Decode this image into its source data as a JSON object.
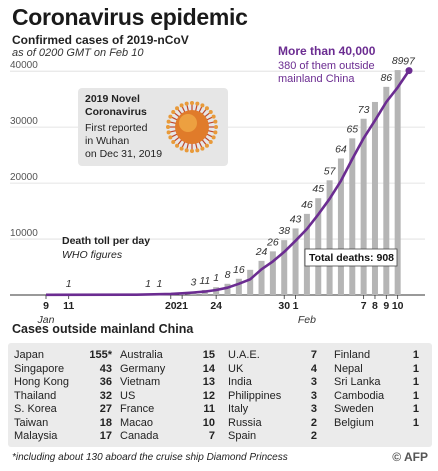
{
  "header": {
    "title": "Coronavirus epidemic",
    "subtitle": "Confirmed cases of 2019-nCoV",
    "subtitle2": "as of 0200 GMT on Feb 10"
  },
  "chart_data": {
    "type": "bar",
    "ylim": [
      0,
      42000
    ],
    "y_ticks": [
      10000,
      20000,
      30000,
      40000
    ],
    "y_tick_labels": [
      "10000",
      "20000",
      "30000",
      "40000"
    ],
    "x_ticks": [
      {
        "day": 0,
        "label": "9"
      },
      {
        "day": 2,
        "label": "11"
      },
      {
        "day": 11,
        "label": "20"
      },
      {
        "day": 12,
        "label": "21"
      },
      {
        "day": 15,
        "label": "24"
      },
      {
        "day": 21,
        "label": "30"
      },
      {
        "day": 22,
        "label": "1"
      },
      {
        "day": 28,
        "label": "7"
      },
      {
        "day": 29,
        "label": "8"
      },
      {
        "day": 30,
        "label": "9"
      },
      {
        "day": 31,
        "label": "10"
      }
    ],
    "month_labels": [
      {
        "day": 0,
        "label": "Jan"
      },
      {
        "day": 23,
        "label": "Feb"
      }
    ],
    "bars": [
      {
        "day": 12,
        "value": 400
      },
      {
        "day": 13,
        "value": 600
      },
      {
        "day": 14,
        "value": 900
      },
      {
        "day": 15,
        "value": 1400
      },
      {
        "day": 16,
        "value": 2000
      },
      {
        "day": 17,
        "value": 2900
      },
      {
        "day": 18,
        "value": 4500
      },
      {
        "day": 19,
        "value": 6100
      },
      {
        "day": 20,
        "value": 7800
      },
      {
        "day": 21,
        "value": 9800
      },
      {
        "day": 22,
        "value": 11900
      },
      {
        "day": 23,
        "value": 14500
      },
      {
        "day": 24,
        "value": 17300
      },
      {
        "day": 25,
        "value": 20500
      },
      {
        "day": 26,
        "value": 24400
      },
      {
        "day": 27,
        "value": 28000
      },
      {
        "day": 28,
        "value": 31500
      },
      {
        "day": 29,
        "value": 34500
      },
      {
        "day": 30,
        "value": 37200
      },
      {
        "day": 31,
        "value": 40200
      }
    ],
    "cases_line": [
      {
        "day": 0,
        "value": 40
      },
      {
        "day": 8,
        "value": 60
      },
      {
        "day": 11,
        "value": 200
      },
      {
        "day": 12,
        "value": 300
      },
      {
        "day": 13,
        "value": 450
      },
      {
        "day": 14,
        "value": 600
      },
      {
        "day": 15,
        "value": 900
      },
      {
        "day": 16,
        "value": 1300
      },
      {
        "day": 17,
        "value": 2000
      },
      {
        "day": 18,
        "value": 2800
      },
      {
        "day": 19,
        "value": 4600
      },
      {
        "day": 20,
        "value": 6000
      },
      {
        "day": 21,
        "value": 7700
      },
      {
        "day": 22,
        "value": 9700
      },
      {
        "day": 23,
        "value": 11800
      },
      {
        "day": 24,
        "value": 14400
      },
      {
        "day": 25,
        "value": 17200
      },
      {
        "day": 26,
        "value": 20400
      },
      {
        "day": 27,
        "value": 24300
      },
      {
        "day": 28,
        "value": 28000
      },
      {
        "day": 29,
        "value": 31200
      },
      {
        "day": 30,
        "value": 34500
      },
      {
        "day": 31,
        "value": 37100
      },
      {
        "day": 32,
        "value": 40100
      }
    ],
    "death_labels": [
      {
        "day": 2,
        "value": "1"
      },
      {
        "day": 9,
        "value": "1"
      },
      {
        "day": 10,
        "value": "1"
      },
      {
        "day": 13,
        "value": "3"
      },
      {
        "day": 14,
        "value": "11"
      },
      {
        "day": 15,
        "value": "1"
      },
      {
        "day": 16,
        "value": "8"
      },
      {
        "day": 17,
        "value": "16"
      },
      {
        "day": 19,
        "value": "24"
      },
      {
        "day": 20,
        "value": "26"
      },
      {
        "day": 21,
        "value": "38"
      },
      {
        "day": 22,
        "value": "43"
      },
      {
        "day": 23,
        "value": "46"
      },
      {
        "day": 24,
        "value": "45"
      },
      {
        "day": 25,
        "value": "57"
      },
      {
        "day": 26,
        "value": "64"
      },
      {
        "day": 27,
        "value": "65"
      },
      {
        "day": 28,
        "value": "73"
      },
      {
        "day": 30,
        "value": "86"
      },
      {
        "day": 31,
        "value": "89"
      },
      {
        "day": 32,
        "value": "97"
      }
    ],
    "annotations": {
      "death_toll_title": "Death toll per day",
      "death_toll_source": "WHO figures",
      "total_deaths": "Total deaths: 908",
      "callout_line1": "More than 40,000",
      "callout_line2": "380 of them outside",
      "callout_line3": "mainland China",
      "novel_title1": "2019 Novel",
      "novel_title2": "Coronavirus",
      "novel_line1": "First reported",
      "novel_line2": "in Wuhan",
      "novel_line3": "on Dec 31, 2019"
    }
  },
  "outside": {
    "title": "Cases outside mainland China",
    "columns": [
      [
        {
          "name": "Japan",
          "value": "155*"
        },
        {
          "name": "Singapore",
          "value": "43"
        },
        {
          "name": "Hong Kong",
          "value": "36"
        },
        {
          "name": "Thailand",
          "value": "32"
        },
        {
          "name": "S. Korea",
          "value": "27"
        },
        {
          "name": "Taiwan",
          "value": "18"
        },
        {
          "name": "Malaysia",
          "value": "17"
        }
      ],
      [
        {
          "name": "Australia",
          "value": "15"
        },
        {
          "name": "Germany",
          "value": "14"
        },
        {
          "name": "Vietnam",
          "value": "13"
        },
        {
          "name": "US",
          "value": "12"
        },
        {
          "name": "France",
          "value": "11"
        },
        {
          "name": "Macao",
          "value": "10"
        },
        {
          "name": "Canada",
          "value": "7"
        }
      ],
      [
        {
          "name": "U.A.E.",
          "value": "7"
        },
        {
          "name": "UK",
          "value": "4"
        },
        {
          "name": "India",
          "value": "3"
        },
        {
          "name": "Philippines",
          "value": "3"
        },
        {
          "name": "Italy",
          "value": "3"
        },
        {
          "name": "Russia",
          "value": "2"
        },
        {
          "name": "Spain",
          "value": "2"
        }
      ],
      [
        {
          "name": "Finland",
          "value": "1"
        },
        {
          "name": "Nepal",
          "value": "1"
        },
        {
          "name": "Sri Lanka",
          "value": "1"
        },
        {
          "name": "Cambodia",
          "value": "1"
        },
        {
          "name": "Sweden",
          "value": "1"
        },
        {
          "name": "Belgium",
          "value": "1"
        }
      ]
    ]
  },
  "footer": {
    "footnote": "*including about 130 aboard the cruise ship Diamond Princess",
    "copyright": "© AFP"
  },
  "colors": {
    "line": "#6b2c91",
    "bar": "#b5b5b5",
    "grid": "#dddddd",
    "callout": "#6b2c91",
    "virus": "#e07b2a"
  }
}
